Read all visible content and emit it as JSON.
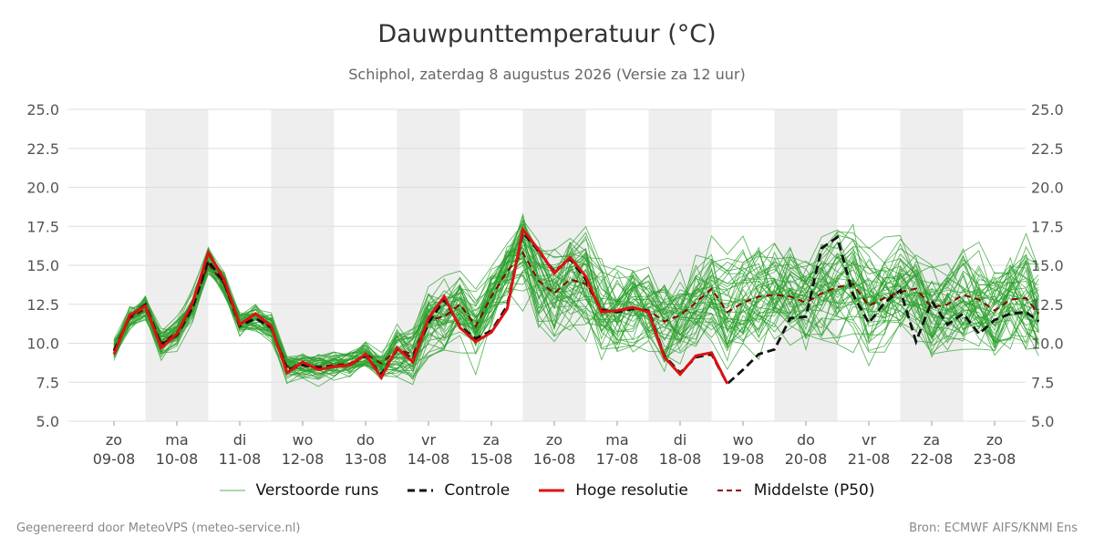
{
  "title": "Dauwpunttemperatuur (°C)",
  "subtitle": "Schiphol, zaterdag  8 augustus 2026 (Versie za 12 uur)",
  "footer_left": "Gegenereerd door MeteoVPS (meteo-service.nl)",
  "footer_right": "Bron: ECMWF AIFS/KNMI Ens",
  "legend": {
    "ensemble": "Verstoorde runs",
    "control": "Controle",
    "hires": "Hoge resolutie",
    "median": "Middelste (P50)"
  },
  "colors": {
    "ensemble": "#2ca02c",
    "control": "#111111",
    "hires": "#dd1111",
    "median": "#8b0000",
    "band": "#eeeeee",
    "grid": "#dddddd"
  },
  "chart_data": {
    "type": "line",
    "title": "Dauwpunttemperatuur (°C)",
    "ylabel": "",
    "ylim": [
      5.0,
      25.0
    ],
    "yticks": [
      "5.0",
      "7.5",
      "10.0",
      "12.5",
      "15.0",
      "17.5",
      "20.0",
      "22.5",
      "25.0"
    ],
    "x_start_day": 0,
    "x_end_day": 15.2,
    "day_ticks": [
      {
        "day": "zo",
        "date": "09-08"
      },
      {
        "day": "ma",
        "date": "10-08"
      },
      {
        "day": "di",
        "date": "11-08"
      },
      {
        "day": "wo",
        "date": "12-08"
      },
      {
        "day": "do",
        "date": "13-08"
      },
      {
        "day": "vr",
        "date": "14-08"
      },
      {
        "day": "za",
        "date": "15-08"
      },
      {
        "day": "zo",
        "date": "16-08"
      },
      {
        "day": "ma",
        "date": "17-08"
      },
      {
        "day": "di",
        "date": "18-08"
      },
      {
        "day": "wo",
        "date": "19-08"
      },
      {
        "day": "do",
        "date": "20-08"
      },
      {
        "day": "vr",
        "date": "21-08"
      },
      {
        "day": "za",
        "date": "22-08"
      },
      {
        "day": "zo",
        "date": "23-08"
      }
    ],
    "grid": true,
    "legend_position": "bottom",
    "ensemble_member_count": 50,
    "series_hires": {
      "name": "Hoge resolutie",
      "points": [
        [
          0.5,
          9.3
        ],
        [
          0.75,
          11.8
        ],
        [
          1.0,
          12.4
        ],
        [
          1.25,
          9.7
        ],
        [
          1.5,
          10.6
        ],
        [
          1.75,
          12.6
        ],
        [
          2.0,
          15.8
        ],
        [
          2.25,
          14.1
        ],
        [
          2.5,
          11.2
        ],
        [
          2.75,
          11.9
        ],
        [
          3.0,
          11.1
        ],
        [
          3.25,
          8.1
        ],
        [
          3.5,
          8.8
        ],
        [
          3.75,
          8.3
        ],
        [
          4.0,
          8.5
        ],
        [
          4.25,
          8.6
        ],
        [
          4.5,
          9.3
        ],
        [
          4.75,
          7.8
        ],
        [
          5.0,
          9.7
        ],
        [
          5.25,
          8.8
        ],
        [
          5.5,
          11.6
        ],
        [
          5.75,
          13.0
        ],
        [
          6.0,
          11.0
        ],
        [
          6.25,
          10.1
        ],
        [
          6.5,
          10.7
        ],
        [
          6.75,
          12.2
        ],
        [
          7.0,
          17.3
        ],
        [
          7.25,
          16.0
        ],
        [
          7.5,
          14.5
        ],
        [
          7.75,
          15.5
        ],
        [
          8.0,
          14.3
        ],
        [
          8.25,
          12.0
        ],
        [
          8.5,
          12.1
        ],
        [
          8.75,
          12.3
        ],
        [
          9.0,
          12.0
        ],
        [
          9.25,
          9.1
        ],
        [
          9.5,
          8.0
        ],
        [
          9.75,
          9.2
        ],
        [
          10.0,
          9.4
        ],
        [
          10.25,
          7.4
        ]
      ]
    },
    "series_control": {
      "name": "Controle",
      "points": [
        [
          0.5,
          9.5
        ],
        [
          0.75,
          11.7
        ],
        [
          1.0,
          12.5
        ],
        [
          1.25,
          9.9
        ],
        [
          1.5,
          10.5
        ],
        [
          1.75,
          12.3
        ],
        [
          2.0,
          15.3
        ],
        [
          2.25,
          13.9
        ],
        [
          2.5,
          11.1
        ],
        [
          2.75,
          11.6
        ],
        [
          3.0,
          11.0
        ],
        [
          3.25,
          8.3
        ],
        [
          3.5,
          8.6
        ],
        [
          3.75,
          8.4
        ],
        [
          4.0,
          8.5
        ],
        [
          4.25,
          8.6
        ],
        [
          4.5,
          9.2
        ],
        [
          4.75,
          8.0
        ],
        [
          5.0,
          9.6
        ],
        [
          5.25,
          9.0
        ],
        [
          5.5,
          11.3
        ],
        [
          5.75,
          12.8
        ],
        [
          6.0,
          11.1
        ],
        [
          6.25,
          10.3
        ],
        [
          6.5,
          10.8
        ],
        [
          6.75,
          12.4
        ],
        [
          7.0,
          17.1
        ],
        [
          7.25,
          15.9
        ],
        [
          7.5,
          14.6
        ],
        [
          7.75,
          15.4
        ],
        [
          8.0,
          14.1
        ],
        [
          8.25,
          12.1
        ],
        [
          8.5,
          12.0
        ],
        [
          8.75,
          12.2
        ],
        [
          9.0,
          12.1
        ],
        [
          9.25,
          9.2
        ],
        [
          9.5,
          8.1
        ],
        [
          9.75,
          9.1
        ],
        [
          10.0,
          9.3
        ],
        [
          10.25,
          7.4
        ],
        [
          10.5,
          8.3
        ],
        [
          10.75,
          9.3
        ],
        [
          11.0,
          9.6
        ],
        [
          11.25,
          11.6
        ],
        [
          11.5,
          11.7
        ],
        [
          11.75,
          16.1
        ],
        [
          12.0,
          16.8
        ],
        [
          12.25,
          13.1
        ],
        [
          12.5,
          11.3
        ],
        [
          12.75,
          12.6
        ],
        [
          13.0,
          13.4
        ],
        [
          13.25,
          10.1
        ],
        [
          13.5,
          12.7
        ],
        [
          13.75,
          11.2
        ],
        [
          14.0,
          11.9
        ],
        [
          14.25,
          10.6
        ],
        [
          14.5,
          11.5
        ],
        [
          14.75,
          11.9
        ],
        [
          15.0,
          12.0
        ],
        [
          15.2,
          11.4
        ]
      ]
    },
    "series_median": {
      "name": "Middelste (P50)",
      "points": [
        [
          0.5,
          9.6
        ],
        [
          0.75,
          11.6
        ],
        [
          1.0,
          12.2
        ],
        [
          1.25,
          10.0
        ],
        [
          1.5,
          10.7
        ],
        [
          1.75,
          12.3
        ],
        [
          2.0,
          15.1
        ],
        [
          2.25,
          13.8
        ],
        [
          2.5,
          11.2
        ],
        [
          2.75,
          11.6
        ],
        [
          3.0,
          11.0
        ],
        [
          3.25,
          8.5
        ],
        [
          3.5,
          8.6
        ],
        [
          3.75,
          8.5
        ],
        [
          4.0,
          8.6
        ],
        [
          4.25,
          8.7
        ],
        [
          4.5,
          9.3
        ],
        [
          4.75,
          8.7
        ],
        [
          5.0,
          9.6
        ],
        [
          5.25,
          9.3
        ],
        [
          5.5,
          11.5
        ],
        [
          5.75,
          11.7
        ],
        [
          6.0,
          12.5
        ],
        [
          6.25,
          11.1
        ],
        [
          6.5,
          13.0
        ],
        [
          6.75,
          14.6
        ],
        [
          7.0,
          15.8
        ],
        [
          7.25,
          14.0
        ],
        [
          7.5,
          13.2
        ],
        [
          7.75,
          14.1
        ],
        [
          8.0,
          13.8
        ],
        [
          8.25,
          12.2
        ],
        [
          8.5,
          12.0
        ],
        [
          8.75,
          12.3
        ],
        [
          9.0,
          12.1
        ],
        [
          9.25,
          11.4
        ],
        [
          9.5,
          11.8
        ],
        [
          9.75,
          12.6
        ],
        [
          10.0,
          13.5
        ],
        [
          10.25,
          12.0
        ],
        [
          10.5,
          12.6
        ],
        [
          10.75,
          13.0
        ],
        [
          11.0,
          13.1
        ],
        [
          11.25,
          13.0
        ],
        [
          11.5,
          12.6
        ],
        [
          11.75,
          13.2
        ],
        [
          12.0,
          13.6
        ],
        [
          12.25,
          13.8
        ],
        [
          12.5,
          12.4
        ],
        [
          12.75,
          12.9
        ],
        [
          13.0,
          13.3
        ],
        [
          13.25,
          13.5
        ],
        [
          13.5,
          12.3
        ],
        [
          13.75,
          12.5
        ],
        [
          14.0,
          13.1
        ],
        [
          14.25,
          12.8
        ],
        [
          14.5,
          12.1
        ],
        [
          14.75,
          12.8
        ],
        [
          15.0,
          12.9
        ],
        [
          15.2,
          11.9
        ]
      ]
    }
  }
}
